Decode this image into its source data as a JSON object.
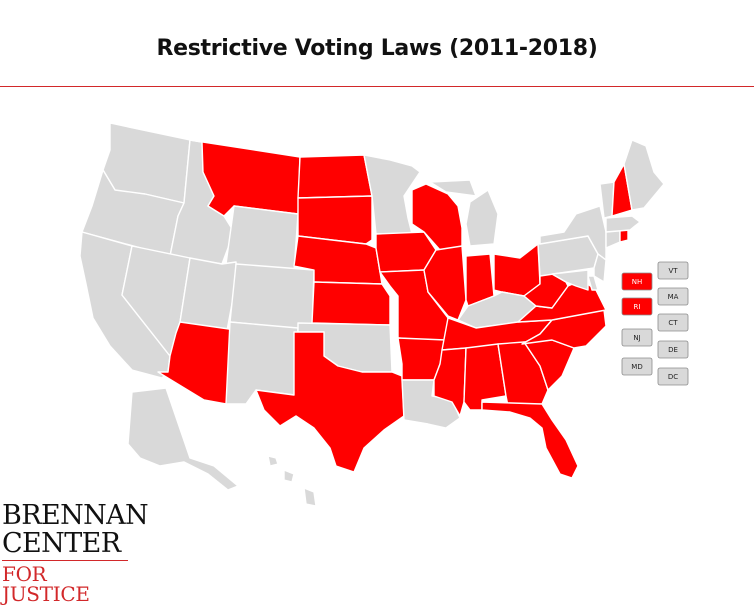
{
  "title": "Restrictive Voting Laws (2011-2018)",
  "colors": {
    "restrictive": "#ff0000",
    "other": "#d9d9d9",
    "border": "#ffffff",
    "accent_rule": "#d2282a"
  },
  "restrictive_states": [
    "MT",
    "ND",
    "SD",
    "NE",
    "KS",
    "TX",
    "AZ",
    "IA",
    "MO",
    "AR",
    "MS",
    "AL",
    "GA",
    "FL",
    "TN",
    "SC",
    "NC",
    "VA",
    "WV",
    "OH",
    "IN",
    "IL",
    "WI",
    "NH",
    "RI"
  ],
  "small_state_boxes": [
    {
      "abbr": "NH",
      "restrictive": true
    },
    {
      "abbr": "RI",
      "restrictive": true
    },
    {
      "abbr": "NJ",
      "restrictive": false
    },
    {
      "abbr": "MD",
      "restrictive": false
    },
    {
      "abbr": "VT",
      "restrictive": false
    },
    {
      "abbr": "MA",
      "restrictive": false
    },
    {
      "abbr": "CT",
      "restrictive": false
    },
    {
      "abbr": "DE",
      "restrictive": false
    },
    {
      "abbr": "DC",
      "restrictive": false
    }
  ],
  "logo": {
    "line1": "BRENNAN",
    "line2": "CENTER",
    "line3": "FOR JUSTICE"
  }
}
